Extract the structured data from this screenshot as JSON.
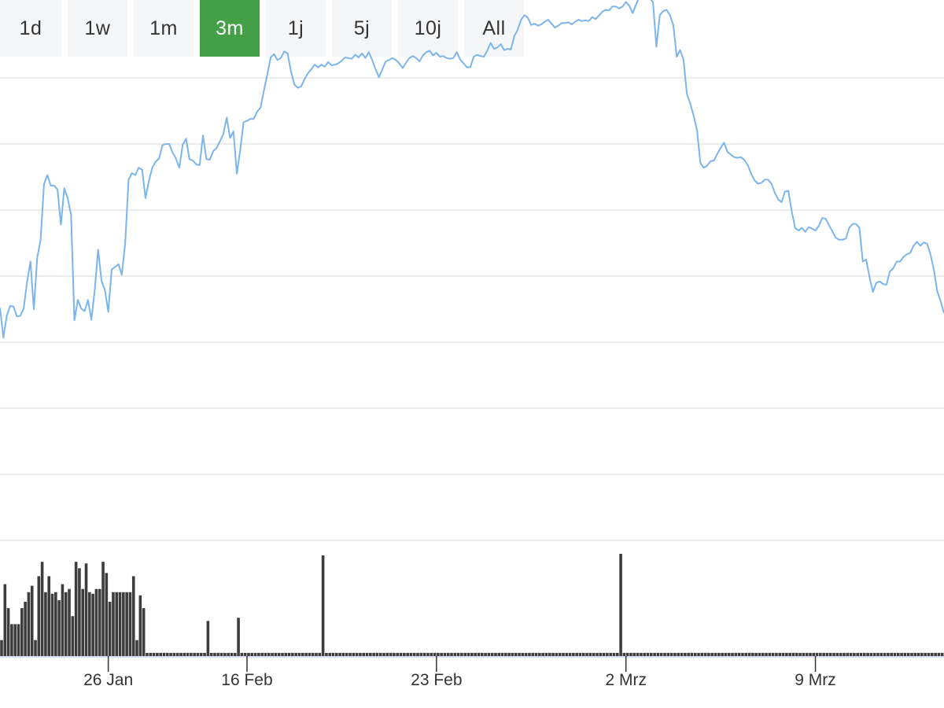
{
  "range_selector": {
    "buttons": [
      "1d",
      "1w",
      "1m",
      "3m",
      "1j",
      "5j",
      "10j",
      "All"
    ],
    "active": "3m",
    "active_color": "#43a047"
  },
  "chart_data": {
    "type": "line",
    "title": "",
    "line_color": "#7cb5ec",
    "volume_color": "#3d3d3d",
    "grid": true,
    "x_tick_labels": [
      {
        "label": "26 Jan",
        "index": 32
      },
      {
        "label": "16 Feb",
        "index": 73
      },
      {
        "label": "23 Feb",
        "index": 129
      },
      {
        "label": "2 Mrz",
        "index": 185
      },
      {
        "label": "9 Mrz",
        "index": 241
      }
    ],
    "price_ylim": [
      0,
      7
    ],
    "price_series": [
      3.52,
      3.07,
      3.4,
      3.55,
      3.54,
      3.39,
      3.4,
      3.51,
      3.91,
      4.22,
      3.5,
      4.28,
      4.55,
      5.39,
      5.53,
      5.37,
      5.37,
      5.31,
      4.78,
      5.33,
      5.18,
      4.93,
      3.33,
      3.64,
      3.51,
      3.47,
      3.64,
      3.34,
      3.79,
      4.4,
      3.93,
      3.79,
      3.46,
      4.1,
      4.14,
      4.18,
      4.02,
      4.5,
      5.46,
      5.56,
      5.53,
      5.64,
      5.61,
      5.18,
      5.44,
      5.64,
      5.73,
      5.78,
      5.98,
      6.0,
      6.0,
      5.87,
      5.78,
      5.64,
      5.99,
      6.08,
      5.77,
      5.75,
      5.69,
      5.68,
      6.13,
      5.77,
      5.76,
      5.89,
      5.94,
      6.04,
      6.15,
      6.4,
      6.09,
      6.19,
      5.55,
      5.91,
      6.33,
      6.35,
      6.38,
      6.38,
      6.49,
      6.55,
      6.81,
      7.05,
      7.31,
      7.36,
      7.27,
      7.3,
      7.4,
      7.37,
      7.1,
      6.9,
      6.85,
      6.87,
      6.98,
      7.07,
      7.13,
      7.2,
      7.16,
      7.2,
      7.17,
      7.24,
      7.19,
      7.2,
      7.22,
      7.26,
      7.31,
      7.3,
      7.29,
      7.35,
      7.31,
      7.37,
      7.3,
      7.39,
      7.27,
      7.13,
      7.01,
      7.13,
      7.25,
      7.27,
      7.3,
      7.27,
      7.22,
      7.15,
      7.23,
      7.3,
      7.33,
      7.3,
      7.25,
      7.34,
      7.39,
      7.41,
      7.34,
      7.38,
      7.32,
      7.33,
      7.3,
      7.29,
      7.3,
      7.39,
      7.28,
      7.22,
      7.16,
      7.16,
      7.32,
      7.35,
      7.33,
      7.32,
      7.41,
      7.53,
      7.44,
      7.46,
      7.51,
      7.42,
      7.44,
      7.43,
      7.63,
      7.73,
      7.88,
      7.95,
      7.91,
      7.8,
      7.82,
      7.79,
      7.81,
      7.85,
      7.88,
      7.82,
      7.76,
      7.79,
      7.83,
      7.83,
      7.84,
      7.81,
      7.85,
      7.88,
      7.86,
      7.87,
      7.86,
      7.92,
      7.89,
      7.94,
      8.0,
      8.03,
      8.02,
      8.08,
      8.08,
      8.05,
      8.08,
      8.15,
      8.09,
      7.98,
      8.11,
      8.24,
      8.37,
      8.4,
      8.21,
      8.14,
      7.47,
      7.95,
      8.01,
      8.03,
      7.95,
      7.8,
      7.32,
      7.42,
      7.28,
      6.76,
      6.61,
      6.43,
      6.21,
      5.71,
      5.64,
      5.67,
      5.74,
      5.75,
      5.85,
      5.94,
      6.02,
      5.88,
      5.84,
      5.8,
      5.79,
      5.8,
      5.76,
      5.68,
      5.55,
      5.45,
      5.4,
      5.41,
      5.46,
      5.46,
      5.4,
      5.26,
      5.16,
      5.12,
      5.28,
      5.29,
      4.98,
      4.73,
      4.69,
      4.73,
      4.67,
      4.74,
      4.72,
      4.69,
      4.76,
      4.88,
      4.87,
      4.77,
      4.68,
      4.58,
      4.55,
      4.55,
      4.57,
      4.73,
      4.79,
      4.79,
      4.73,
      4.22,
      4.25,
      3.98,
      3.76,
      3.9,
      3.92,
      3.88,
      3.87,
      4.07,
      4.12,
      4.22,
      4.22,
      4.29,
      4.33,
      4.35,
      4.46,
      4.52,
      4.46,
      4.51,
      4.49,
      4.33,
      4.1,
      3.77,
      3.62,
      3.44
    ],
    "volume_series": [
      10,
      45,
      30,
      20,
      20,
      20,
      30,
      34,
      40,
      44,
      10,
      50,
      59,
      40,
      50,
      39,
      40,
      35,
      45,
      40,
      42,
      25,
      59,
      55,
      42,
      58,
      40,
      39,
      42,
      42,
      59,
      52,
      34,
      40,
      40,
      40,
      40,
      40,
      40,
      50,
      10,
      38,
      30,
      2,
      2,
      2,
      2,
      2,
      2,
      2,
      2,
      2,
      2,
      2,
      2,
      2,
      2,
      2,
      2,
      2,
      2,
      22,
      2,
      2,
      2,
      2,
      2,
      2,
      2,
      2,
      24,
      2,
      2,
      2,
      2,
      2,
      2,
      2,
      2,
      2,
      2,
      2,
      2,
      2,
      2,
      2,
      2,
      2,
      2,
      2,
      2,
      2,
      2,
      2,
      2,
      63,
      2,
      2,
      2,
      2,
      2,
      2,
      2,
      2,
      2,
      2,
      2,
      2,
      2,
      2,
      2,
      2,
      2,
      2,
      2,
      2,
      2,
      2,
      2,
      2,
      2,
      2,
      2,
      2,
      2,
      2,
      2,
      2,
      2,
      2,
      2,
      2,
      2,
      2,
      2,
      2,
      2,
      2,
      2,
      2,
      2,
      2,
      2,
      2,
      2,
      2,
      2,
      2,
      2,
      2,
      2,
      2,
      2,
      2,
      2,
      2,
      2,
      2,
      2,
      2,
      2,
      2,
      2,
      2,
      2,
      2,
      2,
      2,
      2,
      2,
      2,
      2,
      2,
      2,
      2,
      2,
      2,
      2,
      2,
      2,
      2,
      2,
      2,
      64,
      2,
      2,
      2,
      2,
      2,
      2,
      2,
      2,
      2,
      2,
      2,
      2,
      2,
      2,
      2,
      2,
      2,
      2,
      2,
      2,
      2,
      2,
      2,
      2,
      2,
      2,
      2,
      2,
      2,
      2,
      2,
      2,
      2,
      2,
      2,
      2,
      2,
      2,
      2,
      2,
      2,
      2,
      2,
      2,
      2,
      2,
      2,
      2,
      2,
      2,
      2,
      2,
      2,
      2,
      2,
      2,
      2,
      2,
      2,
      2,
      2,
      2,
      2,
      2,
      2,
      2,
      2,
      2,
      2,
      2,
      2,
      2,
      2,
      2,
      2,
      2,
      2,
      2,
      2,
      2,
      2,
      2,
      2,
      2,
      2,
      2,
      2,
      2,
      2,
      2,
      2,
      2,
      2,
      2,
      2,
      2
    ]
  }
}
